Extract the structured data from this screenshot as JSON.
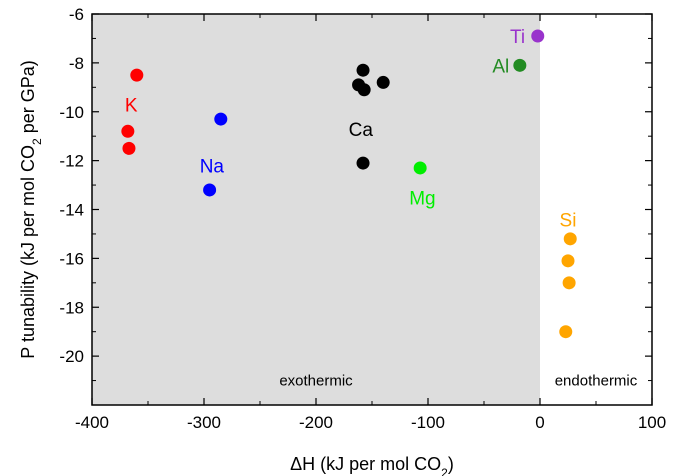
{
  "chart_data": {
    "type": "scatter",
    "xlabel_prefix": "ΔH (kJ per mol CO",
    "xlabel_sub": "2",
    "xlabel_suffix": ")",
    "ylabel_prefix": "P tunability (kJ per mol CO",
    "ylabel_sub": "2",
    "ylabel_suffix": " per GPa)",
    "xlim": [
      -400,
      100
    ],
    "ylim": [
      -22,
      -6
    ],
    "xticks": [
      -400,
      -300,
      -200,
      -100,
      0,
      100
    ],
    "yticks": [
      -20,
      -18,
      -16,
      -14,
      -12,
      -10,
      -8,
      -6
    ],
    "xtick_labels": [
      "-400",
      "-300",
      "-200",
      "-100",
      "0",
      "100"
    ],
    "ytick_labels": [
      "-20",
      "-18",
      "-16",
      "-14",
      "-12",
      "-10",
      "-8",
      "-6"
    ],
    "regions": [
      {
        "label": "exothermic",
        "x_range": [
          -400,
          0
        ],
        "color": "#dddddd"
      },
      {
        "label": "endothermic",
        "x_range": [
          0,
          100
        ],
        "color": "#ffffff"
      }
    ],
    "series": [
      {
        "name": "K",
        "color": "#ff0000",
        "label_at": [
          -365,
          -9.7
        ],
        "points": [
          [
            -360,
            -8.5
          ],
          [
            -368,
            -10.8
          ],
          [
            -367,
            -11.5
          ]
        ]
      },
      {
        "name": "Na",
        "color": "#0000ff",
        "label_at": [
          -293,
          -12.2
        ],
        "points": [
          [
            -285,
            -10.3
          ],
          [
            -295,
            -13.2
          ]
        ]
      },
      {
        "name": "Ca",
        "color": "#000000",
        "label_at": [
          -160,
          -10.7
        ],
        "points": [
          [
            -158,
            -8.3
          ],
          [
            -162,
            -8.9
          ],
          [
            -157,
            -9.1
          ],
          [
            -140,
            -8.8
          ],
          [
            -158,
            -12.1
          ]
        ]
      },
      {
        "name": "Mg",
        "color": "#00ee00",
        "label_at": [
          -105,
          -13.5
        ],
        "points": [
          [
            -107,
            -12.3
          ]
        ]
      },
      {
        "name": "Ti",
        "color": "#9933cc",
        "label_at": [
          -20,
          -6.9
        ],
        "points": [
          [
            -2,
            -6.9
          ]
        ]
      },
      {
        "name": "Al",
        "color": "#228b22",
        "label_at": [
          -35,
          -8.1
        ],
        "points": [
          [
            -18,
            -8.1
          ]
        ]
      },
      {
        "name": "Si",
        "color": "#ffa500",
        "label_at": [
          25,
          -14.4
        ],
        "points": [
          [
            27,
            -15.2
          ],
          [
            25,
            -16.1
          ],
          [
            26,
            -17.0
          ],
          [
            23,
            -19.0
          ]
        ]
      }
    ]
  }
}
